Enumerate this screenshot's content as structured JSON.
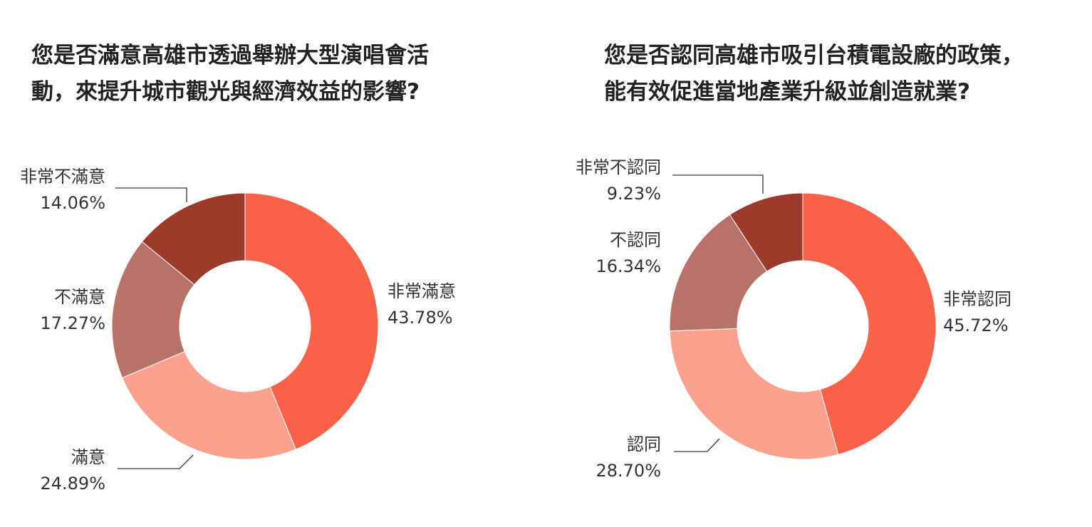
{
  "chart_data": [
    {
      "type": "pie",
      "title": "您是否滿意高雄市透過舉辦大型演唱會活動，來提升城市觀光與經濟效益的影響?",
      "categories": [
        "非常滿意",
        "滿意",
        "不滿意",
        "非常不滿意"
      ],
      "values": [
        43.78,
        24.89,
        17.27,
        14.06
      ],
      "value_labels": [
        "43.78%",
        "24.89%",
        "17.27%",
        "14.06%"
      ],
      "colors": [
        "#F96249",
        "#FBA18E",
        "#B8726A",
        "#9C3A2C"
      ],
      "donut": true,
      "legend": "none"
    },
    {
      "type": "pie",
      "title": "您是否認同高雄市吸引台積電設廠的政策，能有效促進當地產業升級並創造就業?",
      "categories": [
        "非常認同",
        "認同",
        "不認同",
        "非常不認同"
      ],
      "values": [
        45.72,
        28.7,
        16.34,
        9.23
      ],
      "value_labels": [
        "45.72%",
        "28.70%",
        "16.34%",
        "9.23%"
      ],
      "colors": [
        "#F96249",
        "#FBA18E",
        "#B8726A",
        "#9C3A2C"
      ],
      "donut": true,
      "legend": "none"
    }
  ]
}
